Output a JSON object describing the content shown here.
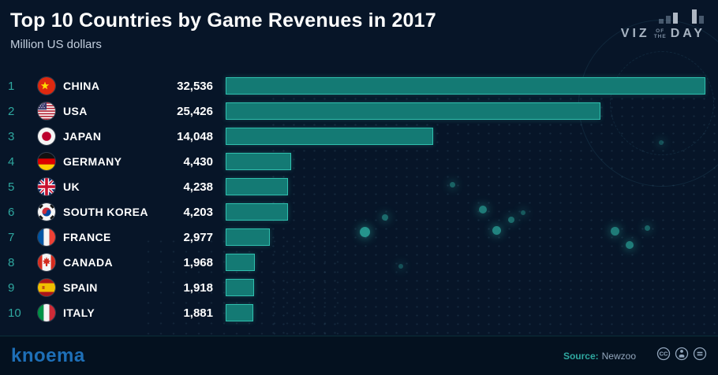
{
  "title": "Top 10 Countries by Game Revenues in 2017",
  "subtitle": "Million US dollars",
  "chart_data": {
    "type": "bar",
    "orientation": "horizontal",
    "title": "Top 10 Countries by Game Revenues in 2017",
    "xlabel": "Million US dollars",
    "ylabel": "",
    "xlim": [
      0,
      32536
    ],
    "grid": false,
    "legend": false,
    "categories": [
      "CHINA",
      "USA",
      "JAPAN",
      "GERMANY",
      "UK",
      "SOUTH KOREA",
      "FRANCE",
      "CANADA",
      "SPAIN",
      "ITALY"
    ],
    "values": [
      32536,
      25426,
      14048,
      4430,
      4238,
      4203,
      2977,
      1968,
      1918,
      1881
    ],
    "value_labels": [
      "32,536",
      "25,426",
      "14,048",
      "4,430",
      "4,238",
      "4,203",
      "2,977",
      "1,968",
      "1,918",
      "1,881"
    ],
    "ranks": [
      1,
      2,
      3,
      4,
      5,
      6,
      7,
      8,
      9,
      10
    ],
    "flags": [
      "cn",
      "us",
      "jp",
      "de",
      "uk",
      "kr",
      "fr",
      "ca",
      "es",
      "it"
    ],
    "bar_color": "#147a74",
    "bar_border": "#2fbfae",
    "rank_color": "#2fa8a0"
  },
  "branding": {
    "logo": "knoema",
    "viz_line1": "VIZ",
    "viz_of": "OF",
    "viz_the": "THE",
    "viz_line2": "DAY"
  },
  "footer": {
    "source_label": "Source:",
    "source_value": "Newzoo",
    "license_icons": [
      "cc-icon",
      "attribution-icon",
      "no-derivatives-icon"
    ]
  }
}
